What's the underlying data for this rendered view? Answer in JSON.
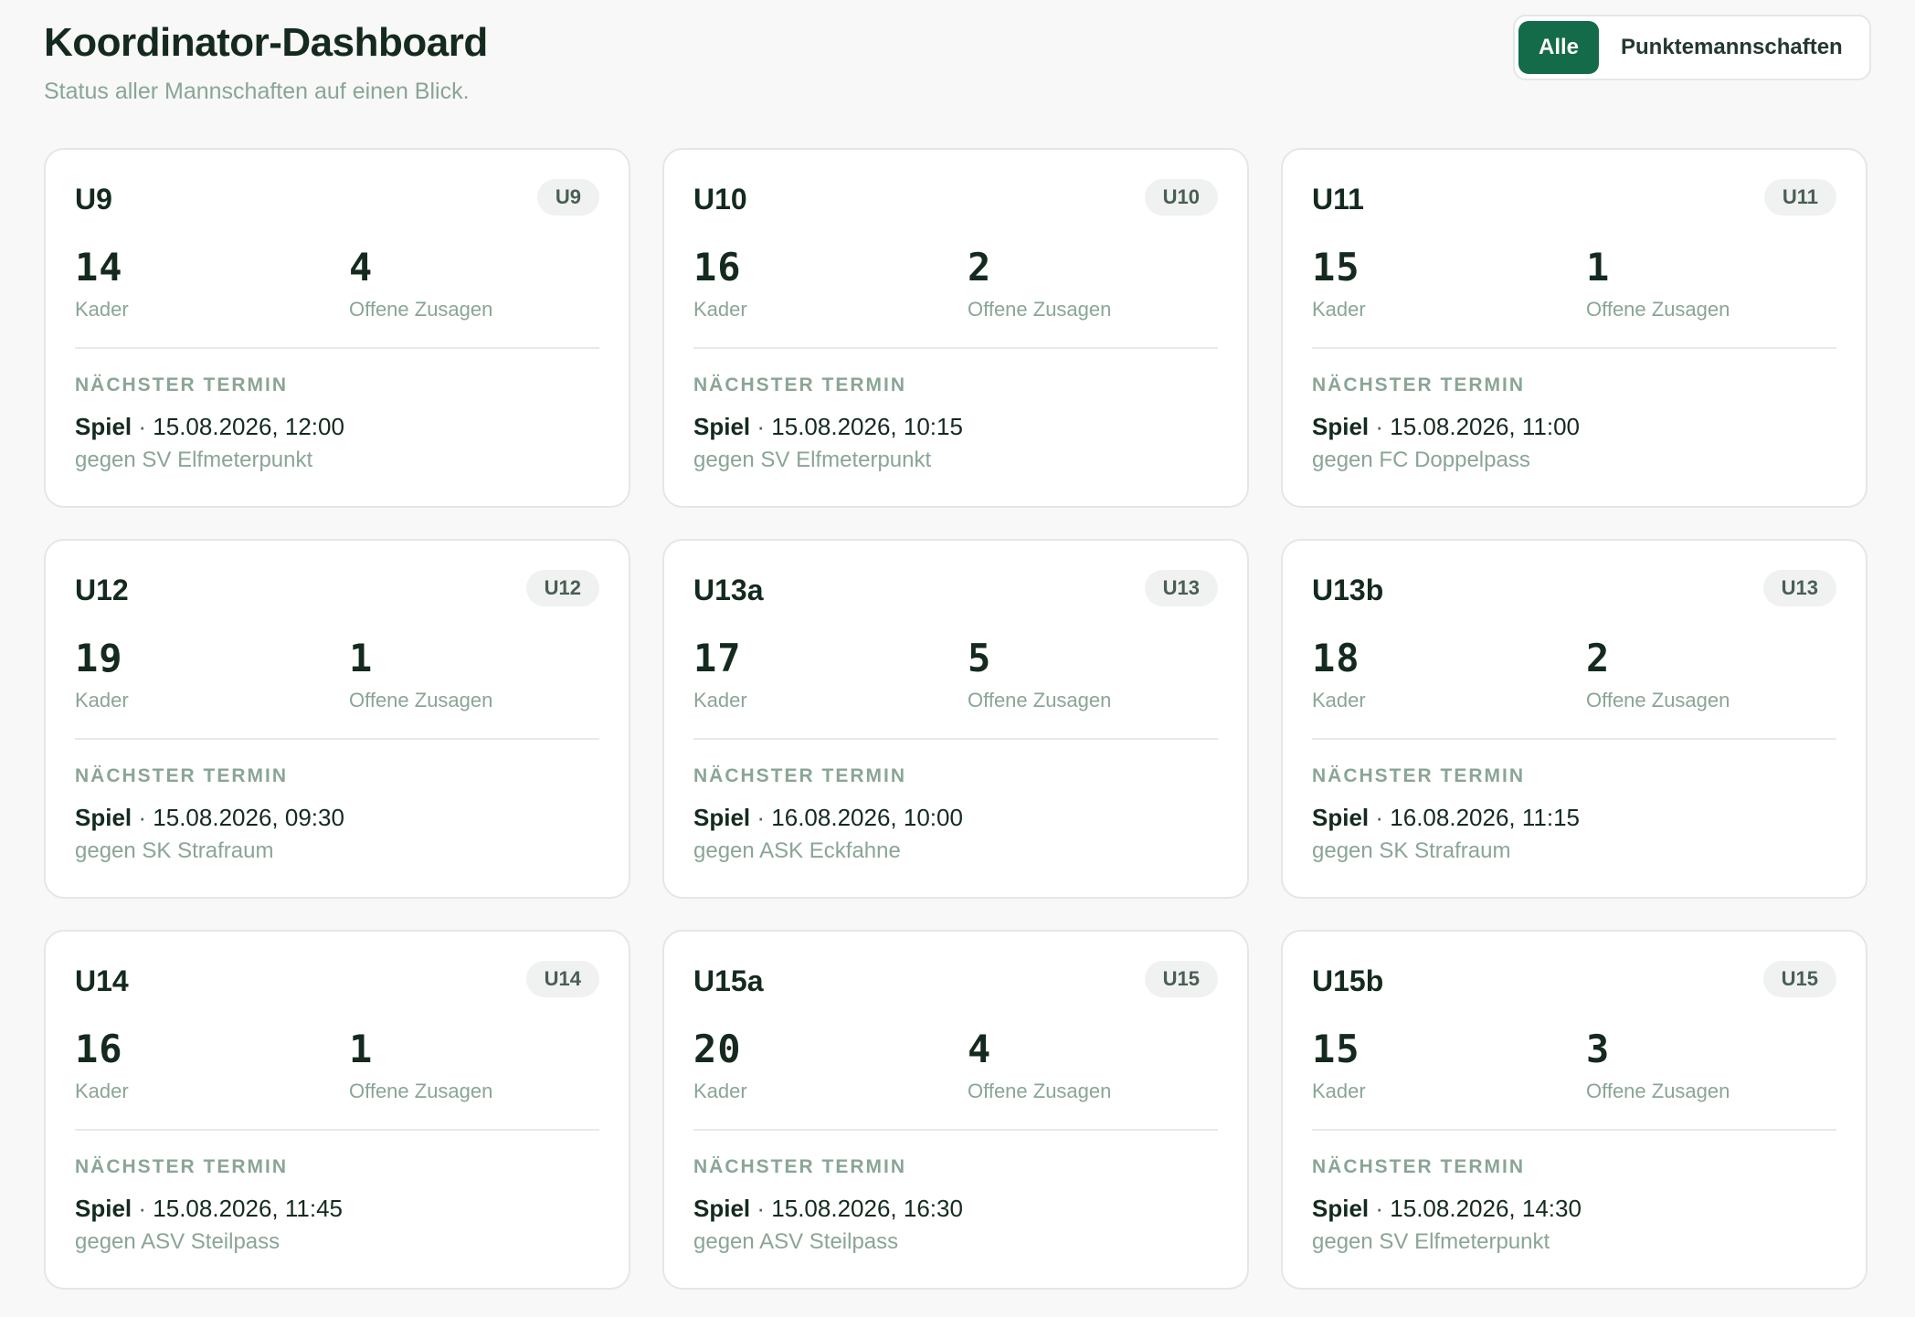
{
  "header": {
    "title": "Koordinator-Dashboard",
    "subtitle": "Status aller Mannschaften auf einen Blick."
  },
  "filter": {
    "options": [
      "Alle",
      "Punktemannschaften"
    ],
    "selected": "Alle"
  },
  "labels": {
    "squad": "Kader",
    "open_responses": "Offene Zusagen",
    "next_event": "NÄCHSTER TERMIN",
    "separator": "·"
  },
  "colors": {
    "accent": "#146b4a",
    "muted_text": "#8aa596",
    "background": "#f7f8f7"
  },
  "teams": [
    {
      "name": "U9",
      "age": "U9",
      "squad": "14",
      "open": "4",
      "event_type": "Spiel",
      "event_time": "15.08.2026, 12:00",
      "opponent": "gegen SV Elfmeterpunkt"
    },
    {
      "name": "U10",
      "age": "U10",
      "squad": "16",
      "open": "2",
      "event_type": "Spiel",
      "event_time": "15.08.2026, 10:15",
      "opponent": "gegen SV Elfmeterpunkt"
    },
    {
      "name": "U11",
      "age": "U11",
      "squad": "15",
      "open": "1",
      "event_type": "Spiel",
      "event_time": "15.08.2026, 11:00",
      "opponent": "gegen FC Doppelpass"
    },
    {
      "name": "U12",
      "age": "U12",
      "squad": "19",
      "open": "1",
      "event_type": "Spiel",
      "event_time": "15.08.2026, 09:30",
      "opponent": "gegen SK Strafraum"
    },
    {
      "name": "U13a",
      "age": "U13",
      "squad": "17",
      "open": "5",
      "event_type": "Spiel",
      "event_time": "16.08.2026, 10:00",
      "opponent": "gegen ASK Eckfahne"
    },
    {
      "name": "U13b",
      "age": "U13",
      "squad": "18",
      "open": "2",
      "event_type": "Spiel",
      "event_time": "16.08.2026, 11:15",
      "opponent": "gegen SK Strafraum"
    },
    {
      "name": "U14",
      "age": "U14",
      "squad": "16",
      "open": "1",
      "event_type": "Spiel",
      "event_time": "15.08.2026, 11:45",
      "opponent": "gegen ASV Steilpass"
    },
    {
      "name": "U15a",
      "age": "U15",
      "squad": "20",
      "open": "4",
      "event_type": "Spiel",
      "event_time": "15.08.2026, 16:30",
      "opponent": "gegen ASV Steilpass"
    },
    {
      "name": "U15b",
      "age": "U15",
      "squad": "15",
      "open": "3",
      "event_type": "Spiel",
      "event_time": "15.08.2026, 14:30",
      "opponent": "gegen SV Elfmeterpunkt"
    }
  ]
}
